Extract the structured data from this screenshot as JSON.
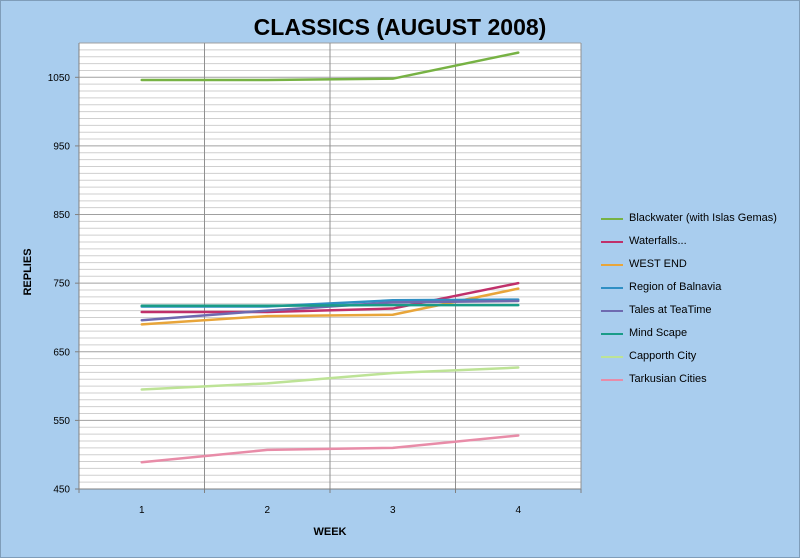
{
  "chart_data": {
    "type": "line",
    "title": "CLASSICS (AUGUST 2008)",
    "xlabel": "WEEK",
    "ylabel": "REPLIES",
    "categories": [
      "1",
      "2",
      "3",
      "4"
    ],
    "ylim": [
      450,
      1100
    ],
    "yticks": [
      "450",
      "550",
      "650",
      "750",
      "850",
      "950",
      "1050"
    ],
    "grid": true,
    "legend_position": "right",
    "series": [
      {
        "name": "Blackwater (with Islas  Gemas)",
        "color": "#77b244",
        "values": [
          1046,
          1046,
          1048,
          1086
        ]
      },
      {
        "name": "Waterfalls...",
        "color": "#c0306a",
        "values": [
          708,
          708,
          713,
          750
        ]
      },
      {
        "name": "WEST END",
        "color": "#e8a53a",
        "values": [
          690,
          702,
          704,
          742
        ]
      },
      {
        "name": "Region of Balnavia",
        "color": "#2f8fc4",
        "values": [
          716,
          716,
          725,
          726
        ]
      },
      {
        "name": "Tales at TeaTime",
        "color": "#6e6ab0",
        "values": [
          696,
          710,
          722,
          724
        ]
      },
      {
        "name": "Mind Scape",
        "color": "#1a9c88",
        "values": [
          717,
          717,
          718,
          718
        ]
      },
      {
        "name": "Capporth City",
        "color": "#bde396",
        "values": [
          595,
          604,
          619,
          627
        ]
      },
      {
        "name": "Tarkusian Cities",
        "color": "#e88ca8",
        "values": [
          489,
          507,
          510,
          528
        ]
      }
    ]
  }
}
